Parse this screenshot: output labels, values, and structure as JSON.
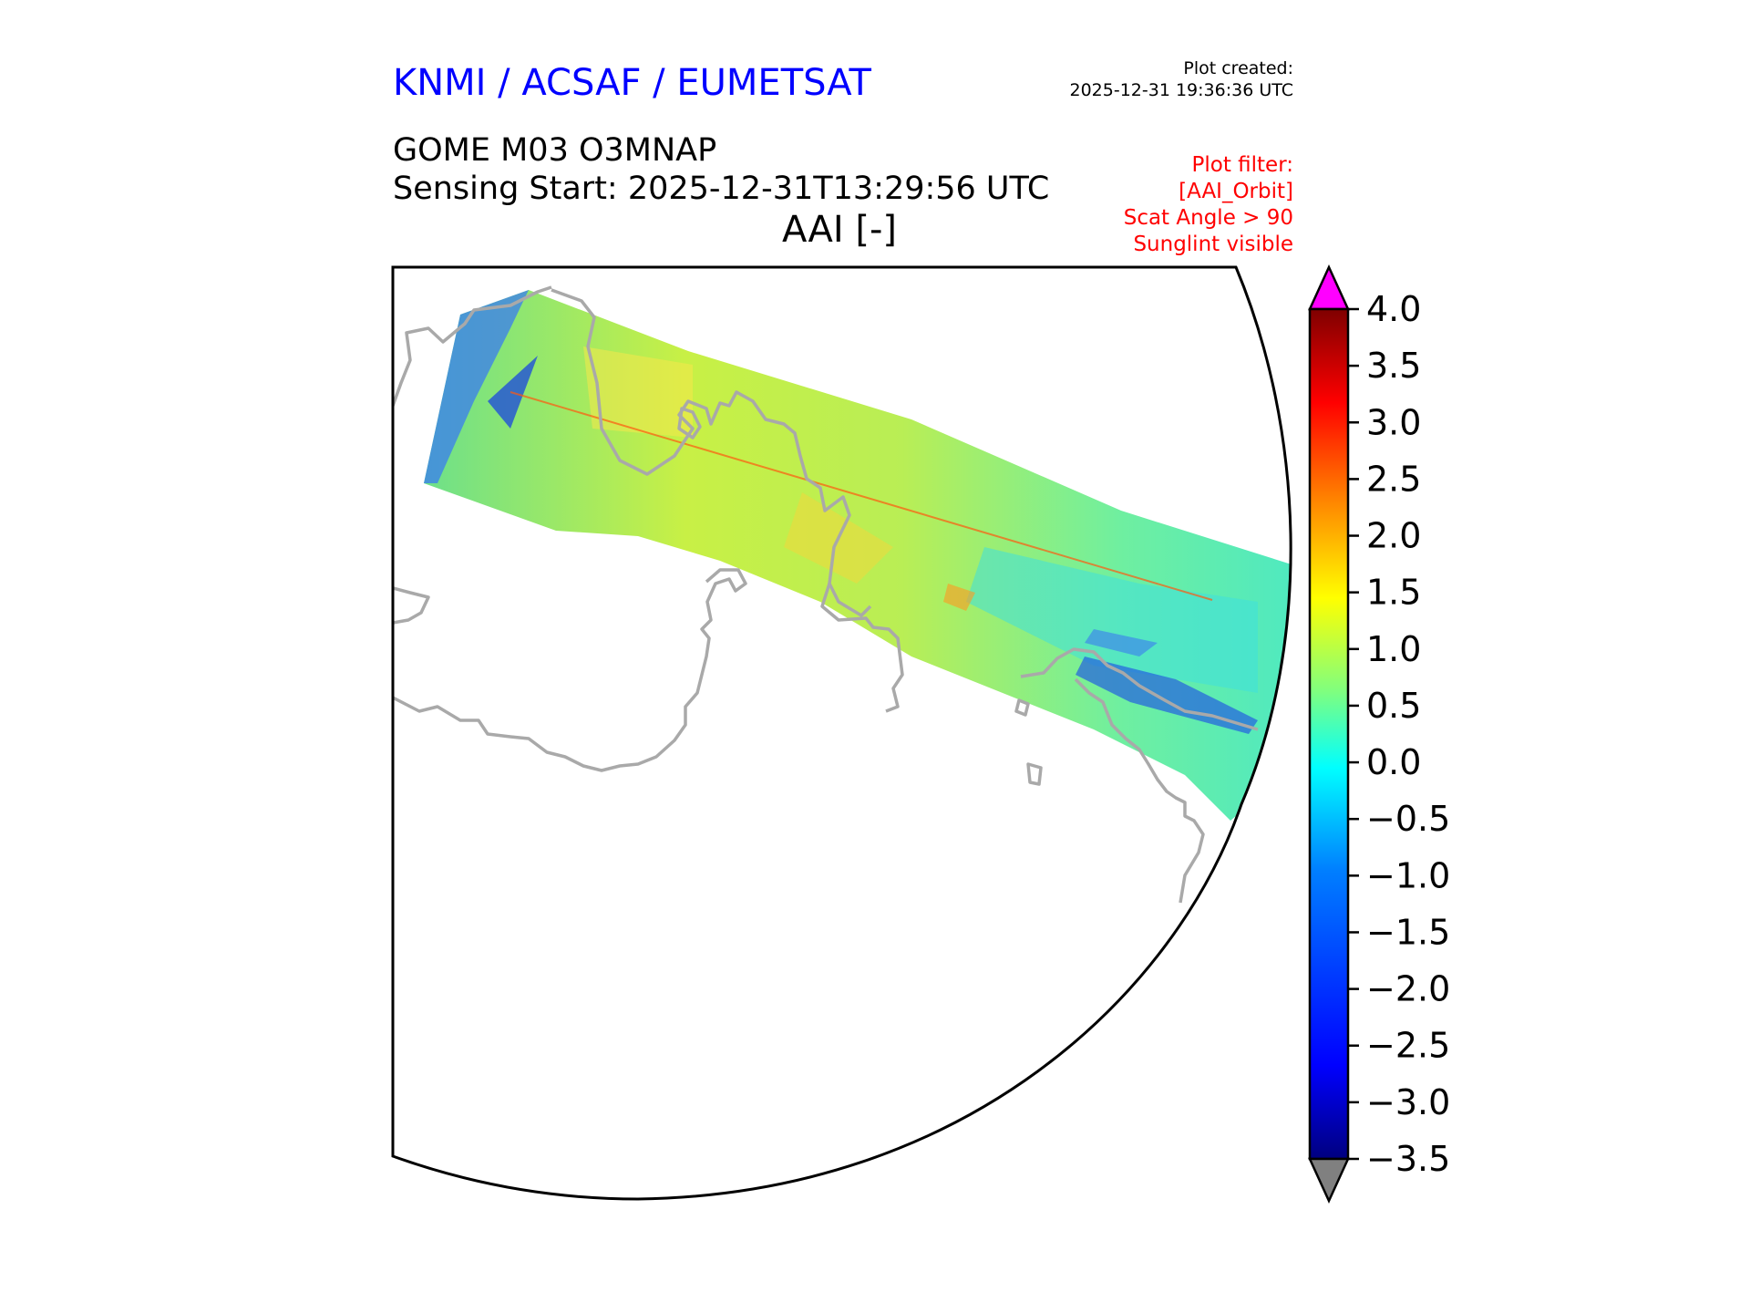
{
  "header": {
    "organisation": "KNMI / ACSAF / EUMETSAT",
    "plot_created_label": "Plot created:",
    "plot_created_time": "2025-12-31 19:36:36 UTC",
    "product": "GOME M03 O3MNAP",
    "sensing_start": "Sensing Start: 2025-12-31T13:29:56 UTC",
    "variable": "AAI [-]",
    "filter_lines": [
      "Plot filter:",
      "[AAI_Orbit]",
      "Scat Angle > 90",
      "Sunglint visible"
    ]
  },
  "colors": {
    "org_text": "#0000ff",
    "filter_text": "#ff0000",
    "coastline": "#a9a9a9",
    "over_color": "#ff00ff",
    "under_color": "#808080",
    "colormap": [
      "#00007f",
      "#0000ff",
      "#007fff",
      "#00ffff",
      "#7fff7f",
      "#ffff00",
      "#ff7f00",
      "#ff0000",
      "#7f0000"
    ]
  },
  "chart_data": {
    "type": "heatmap",
    "title": "AAI [-]",
    "colorbar": {
      "min": -3.5,
      "max": 4.0,
      "ticks": [
        "4.0",
        "3.5",
        "3.0",
        "2.5",
        "2.0",
        "1.5",
        "1.0",
        "0.5",
        "0.0",
        "−0.5",
        "−1.0",
        "−1.5",
        "−2.0",
        "−2.5",
        "−3.0",
        "−3.5"
      ],
      "extend": "both"
    }
  }
}
